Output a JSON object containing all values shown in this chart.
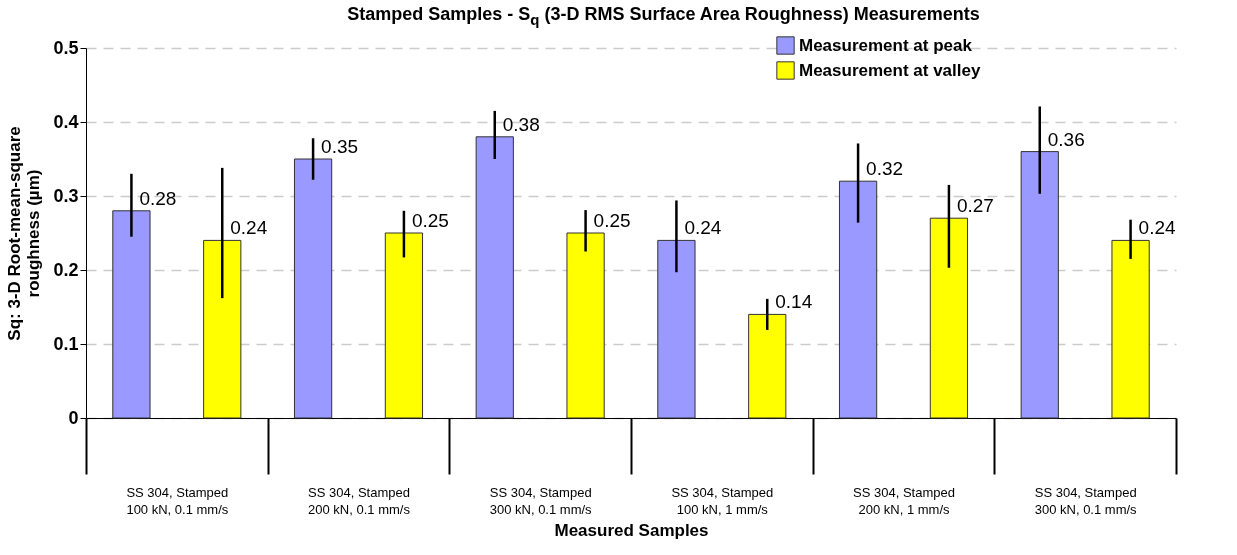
{
  "chart_data": {
    "type": "bar",
    "title": "Stamped Samples - S$_{q}$  (3-D RMS Surface Area Roughness) Measurements",
    "xlabel": "Measured Samples",
    "ylabel": "Sq: 3-D Root-mean-square roughness (µm)",
    "categories": [
      "SS 304, Stamped\n100 kN, 0.1 mm/s",
      "SS 304, Stamped\n200 kN, 0.1 mm/s",
      "SS 304, Stamped\n300 kN, 0.1 mm/s",
      "SS 304, Stamped\n100 kN, 1 mm/s",
      "SS 304, Stamped\n200 kN, 1 mm/s",
      "SS 304, Stamped\n300 kN, 0.1 mm/s"
    ],
    "series": [
      {
        "name": "Measurement at peak",
        "color": "#9999ff",
        "values": [
          0.28,
          0.35,
          0.38,
          0.24,
          0.32,
          0.36
        ],
        "errors": [
          [
            0.245,
            0.33
          ],
          [
            0.322,
            0.378
          ],
          [
            0.35,
            0.415
          ],
          [
            0.197,
            0.294
          ],
          [
            0.264,
            0.371
          ],
          [
            0.303,
            0.421
          ]
        ]
      },
      {
        "name": "Measurement at valley",
        "color": "#ffff00",
        "values": [
          0.24,
          0.25,
          0.25,
          0.14,
          0.27,
          0.24
        ],
        "errors": [
          [
            0.162,
            0.338
          ],
          [
            0.217,
            0.28
          ],
          [
            0.225,
            0.281
          ],
          [
            0.119,
            0.161
          ],
          [
            0.203,
            0.315
          ],
          [
            0.215,
            0.268
          ]
        ]
      }
    ],
    "ylim": [
      0,
      0.5
    ],
    "yticks": [
      0,
      0.1,
      0.2,
      0.3,
      0.4,
      0.5
    ],
    "grid": "y",
    "legend": "top right",
    "data_labels": true
  }
}
